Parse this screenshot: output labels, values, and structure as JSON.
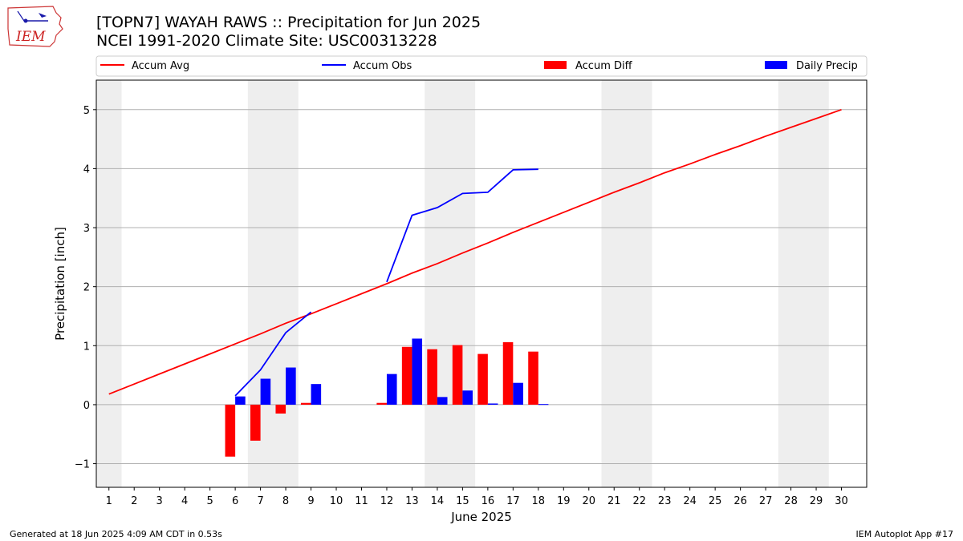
{
  "header": {
    "title_line1": "[TOPN7] WAYAH RAWS :: Precipitation for Jun 2025",
    "title_line2": "NCEI 1991-2020 Climate Site: USC00313228",
    "logo_text": "IEM"
  },
  "footer": {
    "generated": "Generated at 18 Jun 2025 4:09 AM CDT in 0.53s",
    "app": "IEM Autoplot App #17"
  },
  "colors": {
    "avg": "#ff0000",
    "obs": "#0000ff",
    "diff": "#ff0000",
    "daily": "#0000ff",
    "weekend_band": "#eeeeee",
    "grid": "#b0b0b0"
  },
  "chart_data": {
    "type": "bar+line",
    "xlabel": "June 2025",
    "ylabel": "Precipitation [inch]",
    "xlim": [
      0.5,
      31
    ],
    "ylim": [
      -1.4,
      5.5
    ],
    "x_ticks": [
      1,
      2,
      3,
      4,
      5,
      6,
      7,
      8,
      9,
      10,
      11,
      12,
      13,
      14,
      15,
      16,
      17,
      18,
      19,
      20,
      21,
      22,
      23,
      24,
      25,
      26,
      27,
      28,
      29,
      30
    ],
    "y_ticks": [
      -1,
      0,
      1,
      2,
      3,
      4,
      5
    ],
    "y_tick_labels": [
      "−1",
      "0",
      "1",
      "2",
      "3",
      "4",
      "5"
    ],
    "grid": "horizontal",
    "weekend_bands": [
      [
        0.5,
        1.5
      ],
      [
        6.5,
        8.5
      ],
      [
        13.5,
        15.5
      ],
      [
        20.5,
        22.5
      ],
      [
        27.5,
        29.5
      ]
    ],
    "legend": [
      "Accum Avg",
      "Accum Obs",
      "Accum Diff",
      "Daily Precip"
    ],
    "legend_position": "top, above plot",
    "series": [
      {
        "name": "Accum Avg",
        "kind": "line",
        "x": [
          1,
          2,
          3,
          4,
          5,
          6,
          7,
          8,
          9,
          10,
          11,
          12,
          13,
          14,
          15,
          16,
          17,
          18,
          19,
          20,
          21,
          22,
          23,
          24,
          25,
          26,
          27,
          28,
          29,
          30
        ],
        "values": [
          0.18,
          0.35,
          0.52,
          0.69,
          0.86,
          1.03,
          1.2,
          1.38,
          1.54,
          1.71,
          1.88,
          2.05,
          2.23,
          2.39,
          2.57,
          2.74,
          2.92,
          3.09,
          3.26,
          3.43,
          3.6,
          3.76,
          3.93,
          4.08,
          4.24,
          4.39,
          4.55,
          4.7,
          4.85,
          5.0
        ]
      },
      {
        "name": "Accum Obs",
        "kind": "line",
        "segments": [
          {
            "x": [
              6,
              7,
              8,
              9
            ],
            "values": [
              0.15,
              0.59,
              1.22,
              1.57
            ]
          },
          {
            "x": [
              12,
              13,
              14,
              15,
              16,
              17,
              18
            ],
            "values": [
              2.08,
              3.21,
              3.34,
              3.58,
              3.6,
              3.98,
              3.99
            ]
          }
        ]
      },
      {
        "name": "Accum Diff",
        "kind": "bar",
        "x": [
          6,
          7,
          8,
          9,
          12,
          13,
          14,
          15,
          16,
          17,
          18
        ],
        "values": [
          -0.88,
          -0.61,
          -0.15,
          0.03,
          0.03,
          0.98,
          0.94,
          1.01,
          0.86,
          1.06,
          0.9
        ]
      },
      {
        "name": "Daily Precip",
        "kind": "bar",
        "x": [
          6,
          7,
          8,
          9,
          12,
          13,
          14,
          15,
          16,
          17,
          18
        ],
        "values": [
          0.14,
          0.44,
          0.63,
          0.35,
          0.52,
          1.12,
          0.13,
          0.24,
          0.02,
          0.37,
          0.01
        ]
      }
    ]
  }
}
